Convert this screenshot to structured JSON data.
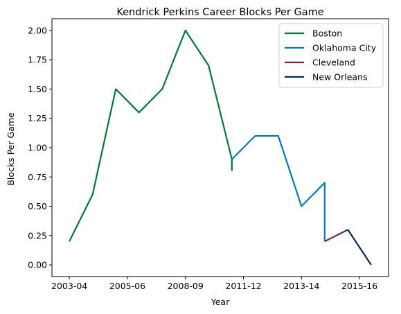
{
  "chart_data": {
    "type": "line",
    "title": "Kendrick Perkins Career Blocks Per Game",
    "xlabel": "Year",
    "ylabel": "Blocks Per Game",
    "x_tick_labels": [
      "2003-04",
      "2005-06",
      "2008-09",
      "2011-12",
      "2013-14",
      "2015-16"
    ],
    "x_tick_positions": [
      0,
      2.5,
      5,
      7.5,
      10,
      12.5
    ],
    "xlim": [
      -0.75,
      13.75
    ],
    "ylim": [
      -0.1,
      2.1
    ],
    "y_ticks": [
      0.0,
      0.25,
      0.5,
      0.75,
      1.0,
      1.25,
      1.5,
      1.75,
      2.0
    ],
    "y_tick_labels": [
      "0.00",
      "0.25",
      "0.50",
      "0.75",
      "1.00",
      "1.25",
      "1.50",
      "1.75",
      "2.00"
    ],
    "grid": false,
    "legend_position": "top-right",
    "series": [
      {
        "name": "Boston",
        "color": "#007A33",
        "points": [
          [
            0,
            0.2
          ],
          [
            1,
            0.6
          ],
          [
            2,
            1.5
          ],
          [
            3,
            1.3
          ],
          [
            4,
            1.5
          ],
          [
            5,
            2.0
          ],
          [
            6,
            1.7
          ],
          [
            7,
            0.9
          ],
          [
            7,
            0.8
          ]
        ]
      },
      {
        "name": "Oklahoma City",
        "color": "#007AC1",
        "points": [
          [
            7,
            0.9
          ],
          [
            8,
            1.1
          ],
          [
            9,
            1.1
          ],
          [
            10,
            0.5
          ],
          [
            11,
            0.7
          ],
          [
            11,
            0.2
          ]
        ]
      },
      {
        "name": "Cleveland",
        "color": "#6F263D",
        "points": [
          [
            11,
            0.2
          ],
          [
            12,
            0.3
          ]
        ]
      },
      {
        "name": "New Orleans",
        "color": "#002B5C",
        "points": [
          [
            12,
            0.3
          ],
          [
            13,
            0.0
          ]
        ]
      }
    ]
  }
}
